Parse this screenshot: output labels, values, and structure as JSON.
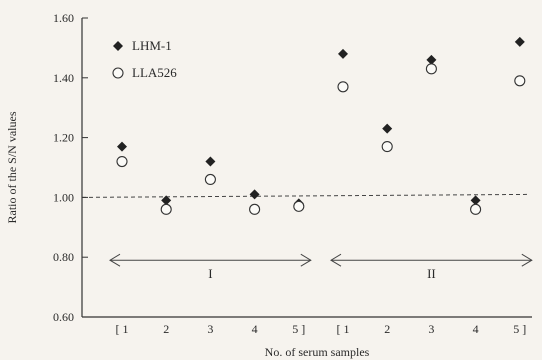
{
  "chart_data": {
    "type": "scatter",
    "xlabel": "No. of serum samples",
    "ylabel": "Ratio of the S/N values",
    "ylim": [
      0.6,
      1.6
    ],
    "yticks": [
      "0.60",
      "0.80",
      "1.00",
      "1.20",
      "1.40",
      "1.60"
    ],
    "x_labels": [
      "[ 1",
      "2",
      "3",
      "4",
      "5 ]",
      "[ 1",
      "2",
      "3",
      "4",
      "5 ]"
    ],
    "reference_line": 1.0,
    "groups": [
      {
        "label": "I",
        "span": [
          1,
          5
        ]
      },
      {
        "label": "II",
        "span": [
          6,
          10
        ]
      }
    ],
    "legend_position": "top-left",
    "series": [
      {
        "name": "LHM-1",
        "marker": "diamond",
        "values": [
          1.17,
          0.99,
          1.12,
          1.01,
          0.98,
          1.48,
          1.23,
          1.46,
          0.99,
          1.52
        ]
      },
      {
        "name": "LLA526",
        "marker": "circle",
        "values": [
          1.12,
          0.96,
          1.06,
          0.96,
          0.97,
          1.37,
          1.17,
          1.43,
          0.96,
          1.39
        ]
      }
    ]
  }
}
